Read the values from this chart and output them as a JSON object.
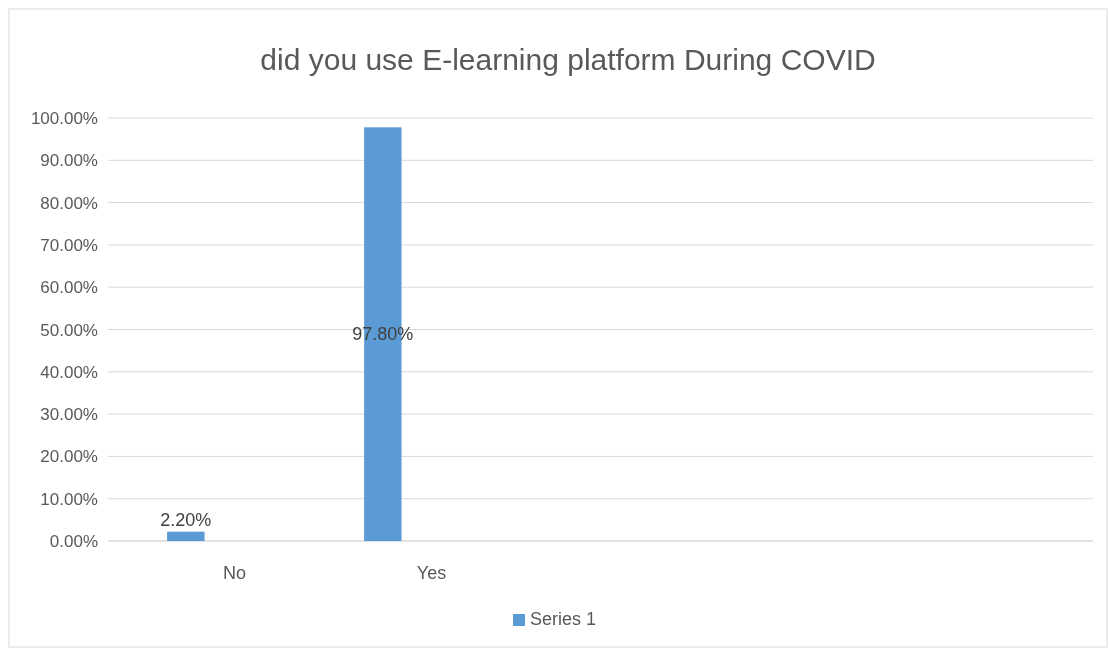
{
  "chart_data": {
    "type": "bar",
    "title": "did you use E-learning platform During COVID",
    "categories": [
      "No",
      "Yes",
      null,
      null,
      null
    ],
    "series": [
      {
        "name": "Series 1",
        "color": "#5b9bd5",
        "values": [
          2.2,
          97.8,
          null,
          null,
          null
        ]
      }
    ],
    "ylim": [
      0,
      100
    ],
    "yticks": [
      {
        "value": 0,
        "label": "0.00%"
      },
      {
        "value": 10,
        "label": "10.00%"
      },
      {
        "value": 20,
        "label": "20.00%"
      },
      {
        "value": 30,
        "label": "30.00%"
      },
      {
        "value": 40,
        "label": "40.00%"
      },
      {
        "value": 50,
        "label": "50.00%"
      },
      {
        "value": 60,
        "label": "60.00%"
      },
      {
        "value": 70,
        "label": "70.00%"
      },
      {
        "value": 80,
        "label": "80.00%"
      },
      {
        "value": 90,
        "label": "90.00%"
      },
      {
        "value": 100,
        "label": "100.00%"
      }
    ],
    "value_labels": [
      "2.20%",
      "97.80%",
      null,
      null,
      null
    ],
    "grid": "y",
    "legend": "bottom"
  }
}
